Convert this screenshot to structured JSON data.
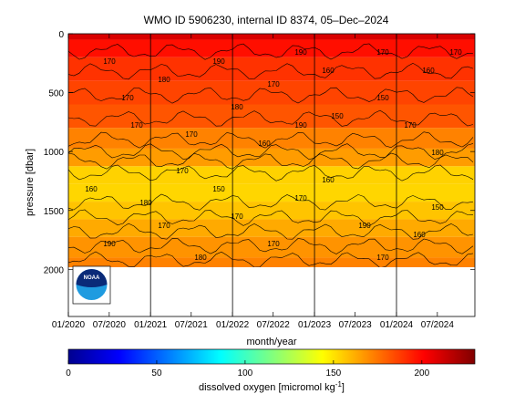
{
  "chart_data": {
    "type": "heatmap",
    "title": "WMO ID 5906230, internal ID 8374, 05–Dec–2024",
    "xlabel": "month/year",
    "ylabel": "pressure [dbar]",
    "x_range": [
      "2020-01-01",
      "2024-12-15"
    ],
    "x_ticks": [
      "01/2020",
      "07/2020",
      "01/2021",
      "07/2021",
      "01/2022",
      "07/2022",
      "01/2023",
      "07/2023",
      "01/2024",
      "07/2024"
    ],
    "y_range": [
      0,
      2400
    ],
    "y_reversed": true,
    "y_ticks": [
      0,
      500,
      1000,
      1500,
      2000
    ],
    "data_max_pressure": 2000,
    "colorbar": {
      "label": "dissolved oxygen [micromol kg",
      "label_exp": "-1",
      "label_close": "]",
      "range": [
        0,
        230
      ],
      "ticks": [
        0,
        50,
        100,
        150,
        200
      ],
      "colormap": "jet"
    },
    "profile": {
      "pressure": [
        0,
        100,
        300,
        500,
        700,
        900,
        1050,
        1200,
        1350,
        1500,
        1650,
        1800,
        2000
      ],
      "oxygen": [
        210,
        198,
        190,
        186,
        182,
        172,
        166,
        154,
        153,
        157,
        163,
        168,
        172
      ]
    },
    "contour_labels": [
      "170",
      "180",
      "190",
      "170",
      "160",
      "150",
      "160",
      "170",
      "170",
      "160",
      "150",
      "170",
      "160",
      "180",
      "170",
      "190",
      "150",
      "180",
      "190",
      "170",
      "170",
      "180",
      "190",
      "170",
      "180",
      "170",
      "170",
      "190",
      "170",
      "170",
      "170",
      "160",
      "150",
      "160"
    ]
  },
  "logo": {
    "text": "NOAA",
    "name": "noaa-logo"
  }
}
